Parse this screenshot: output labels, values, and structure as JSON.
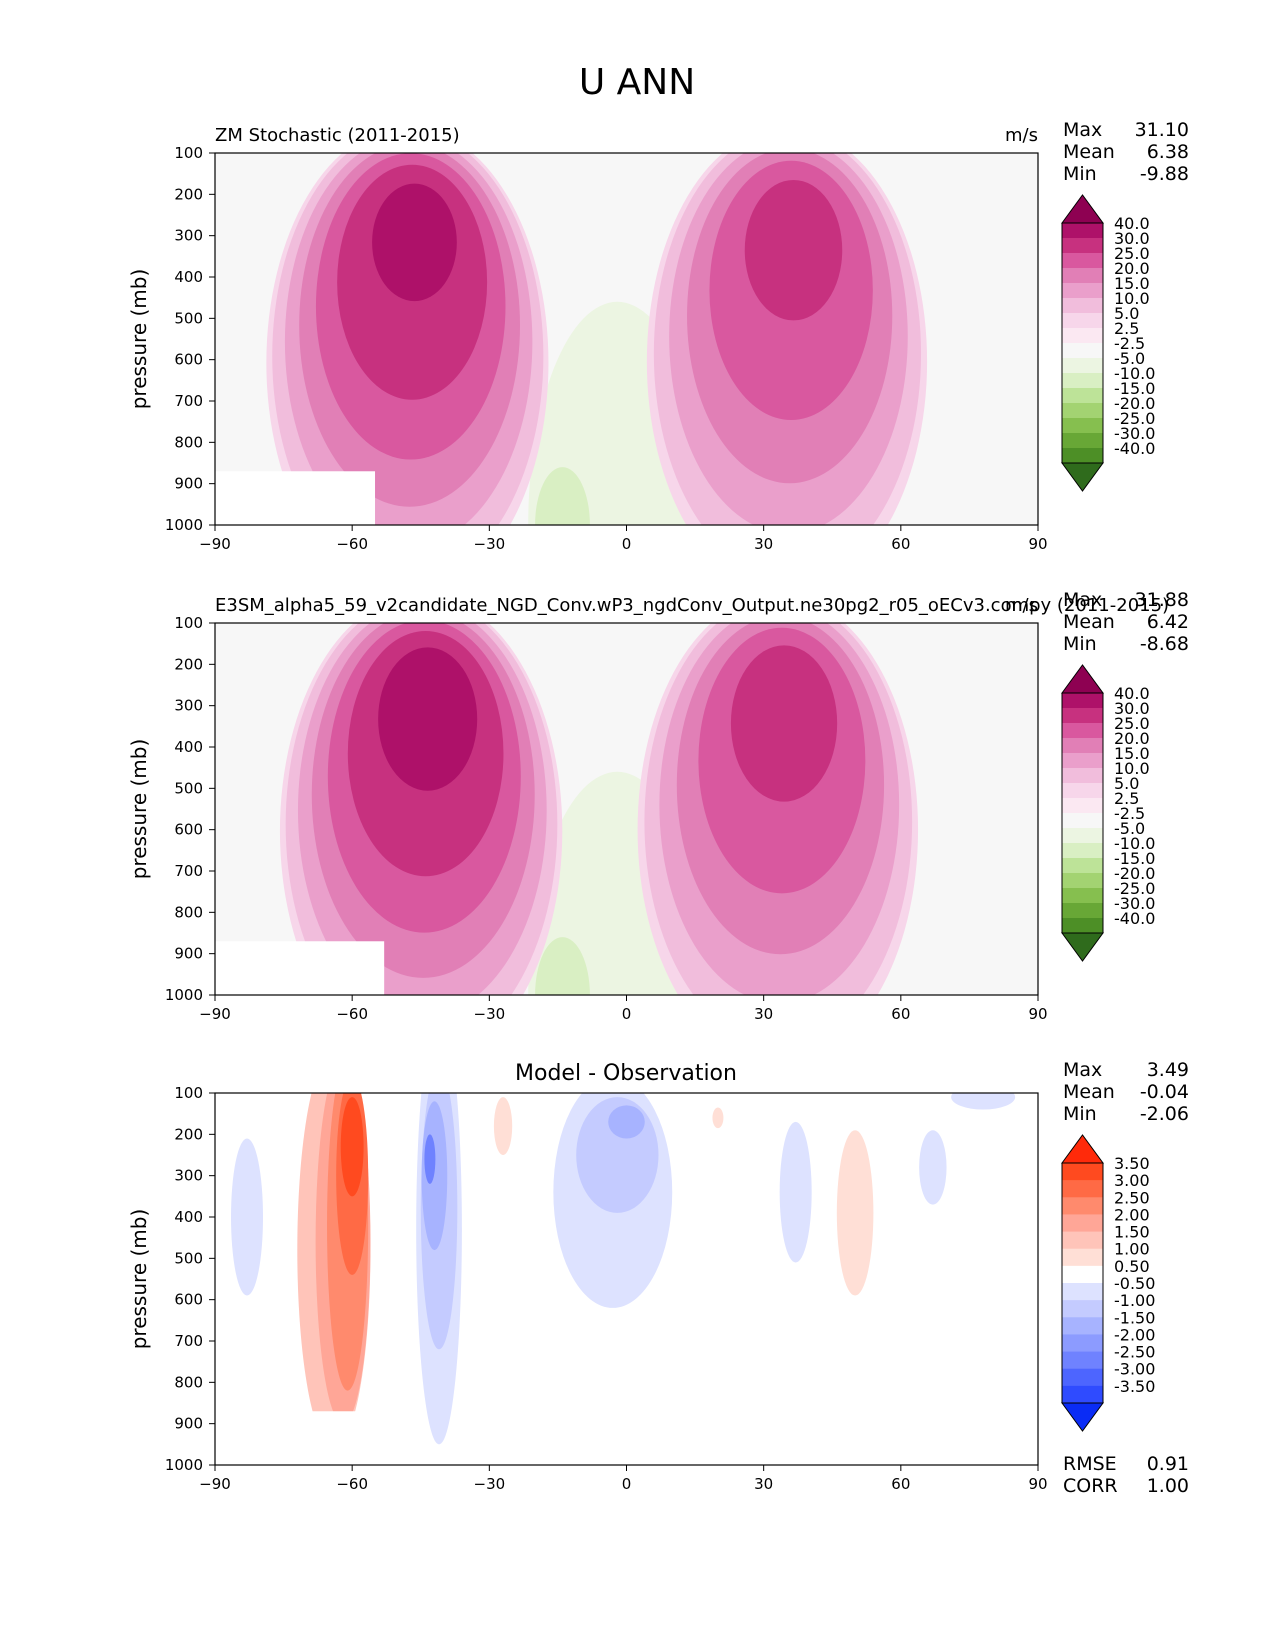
{
  "figure_title": "U ANN",
  "chart_data": [
    {
      "type": "heatmap",
      "id": "test",
      "title": "ZM Stochastic (2011-2015)",
      "title_position": "left",
      "units": "m/s",
      "xlabel": "",
      "ylabel": "pressure (mb)",
      "xlim": [
        -90,
        90
      ],
      "ylim": [
        1000,
        100
      ],
      "xticks": [
        "−90",
        "−60",
        "−30",
        "0",
        "30",
        "60",
        "90"
      ],
      "xtick_values": [
        -90,
        -60,
        -30,
        0,
        30,
        60,
        90
      ],
      "yticks": [
        "100",
        "200",
        "300",
        "400",
        "500",
        "600",
        "700",
        "800",
        "900",
        "1000"
      ],
      "ytick_values": [
        100,
        200,
        300,
        400,
        500,
        600,
        700,
        800,
        900,
        1000
      ],
      "stats": [
        {
          "label": "Max",
          "value": "31.10"
        },
        {
          "label": "Mean",
          "value": "6.38"
        },
        {
          "label": "Min",
          "value": "-9.88"
        }
      ],
      "colorbar": {
        "labels": [
          "40.0",
          "30.0",
          "25.0",
          "20.0",
          "15.0",
          "10.0",
          "5.0",
          "2.5",
          "-2.5",
          "-5.0",
          "-10.0",
          "-15.0",
          "-20.0",
          "-25.0",
          "-30.0",
          "-40.0"
        ],
        "colors": [
          "#8e0152",
          "#ae1169",
          "#c7317f",
          "#d9589f",
          "#e17fb6",
          "#ea9fcb",
          "#f1bddc",
          "#f7d6ea",
          "#fbe8f2",
          "#f7f7f7",
          "#ecf5e2",
          "#d9efc3",
          "#bde398",
          "#a3d372",
          "#86bf4f",
          "#68a736",
          "#4d8f26",
          "#2f6b1c"
        ]
      },
      "jets": [
        {
          "lat": -48,
          "p": 220,
          "peak": 31.1
        },
        {
          "lat": 35,
          "p": 220,
          "peak": 26.5
        }
      ]
    },
    {
      "type": "heatmap",
      "id": "reference",
      "title": "E3SM_alpha5_59_v2candidate_NGD_Conv.wP3_ngdConv_Output.ne30pg2_r05_oECv3.compy (2011-2015)",
      "title_position": "left",
      "units": "m/s",
      "xlabel": "",
      "ylabel": "pressure (mb)",
      "xlim": [
        -90,
        90
      ],
      "ylim": [
        1000,
        100
      ],
      "xticks": [
        "−90",
        "−60",
        "−30",
        "0",
        "30",
        "60",
        "90"
      ],
      "xtick_values": [
        -90,
        -60,
        -30,
        0,
        30,
        60,
        90
      ],
      "yticks": [
        "100",
        "200",
        "300",
        "400",
        "500",
        "600",
        "700",
        "800",
        "900",
        "1000"
      ],
      "ytick_values": [
        100,
        200,
        300,
        400,
        500,
        600,
        700,
        800,
        900,
        1000
      ],
      "stats": [
        {
          "label": "Max",
          "value": "31.88"
        },
        {
          "label": "Mean",
          "value": "6.42"
        },
        {
          "label": "Min",
          "value": "-8.68"
        }
      ],
      "colorbar": {
        "labels": [
          "40.0",
          "30.0",
          "25.0",
          "20.0",
          "15.0",
          "10.0",
          "5.0",
          "2.5",
          "-2.5",
          "-5.0",
          "-10.0",
          "-15.0",
          "-20.0",
          "-25.0",
          "-30.0",
          "-40.0"
        ],
        "colors": [
          "#8e0152",
          "#ae1169",
          "#c7317f",
          "#d9589f",
          "#e17fb6",
          "#ea9fcb",
          "#f1bddc",
          "#f7d6ea",
          "#fbe8f2",
          "#f7f7f7",
          "#ecf5e2",
          "#d9efc3",
          "#bde398",
          "#a3d372",
          "#86bf4f",
          "#68a736",
          "#4d8f26",
          "#2f6b1c"
        ]
      },
      "jets": [
        {
          "lat": -45,
          "p": 215,
          "peak": 31.9
        },
        {
          "lat": 33,
          "p": 215,
          "peak": 27.0
        }
      ]
    },
    {
      "type": "heatmap",
      "id": "diff",
      "title": "Model - Observation",
      "title_position": "center",
      "units": "",
      "xlabel": "",
      "ylabel": "pressure (mb)",
      "xlim": [
        -90,
        90
      ],
      "ylim": [
        1000,
        100
      ],
      "xticks": [
        "−90",
        "−60",
        "−30",
        "0",
        "30",
        "60",
        "90"
      ],
      "xtick_values": [
        -90,
        -60,
        -30,
        0,
        30,
        60,
        90
      ],
      "yticks": [
        "100",
        "200",
        "300",
        "400",
        "500",
        "600",
        "700",
        "800",
        "900",
        "1000"
      ],
      "ytick_values": [
        100,
        200,
        300,
        400,
        500,
        600,
        700,
        800,
        900,
        1000
      ],
      "stats": [
        {
          "label": "Max",
          "value": "3.49"
        },
        {
          "label": "Mean",
          "value": "-0.04"
        },
        {
          "label": "Min",
          "value": "-2.06"
        }
      ],
      "stats_bottom": [
        {
          "label": "RMSE",
          "value": "0.91"
        },
        {
          "label": "CORR",
          "value": "1.00"
        }
      ],
      "colorbar": {
        "labels": [
          "3.50",
          "3.00",
          "2.50",
          "2.00",
          "1.50",
          "1.00",
          "0.50",
          "-0.50",
          "-1.00",
          "-1.50",
          "-2.00",
          "-2.50",
          "-3.00",
          "-3.50"
        ],
        "colors": [
          "#ff2a0a",
          "#ff4a1f",
          "#ff6a45",
          "#ff8a6d",
          "#ffa697",
          "#ffc4b9",
          "#ffdfd6",
          "#ffffff",
          "#dde2ff",
          "#c4cbff",
          "#a7b3ff",
          "#8c9bff",
          "#6f82ff",
          "#4d65ff",
          "#2f4bff",
          "#0a2cf5"
        ]
      }
    }
  ]
}
